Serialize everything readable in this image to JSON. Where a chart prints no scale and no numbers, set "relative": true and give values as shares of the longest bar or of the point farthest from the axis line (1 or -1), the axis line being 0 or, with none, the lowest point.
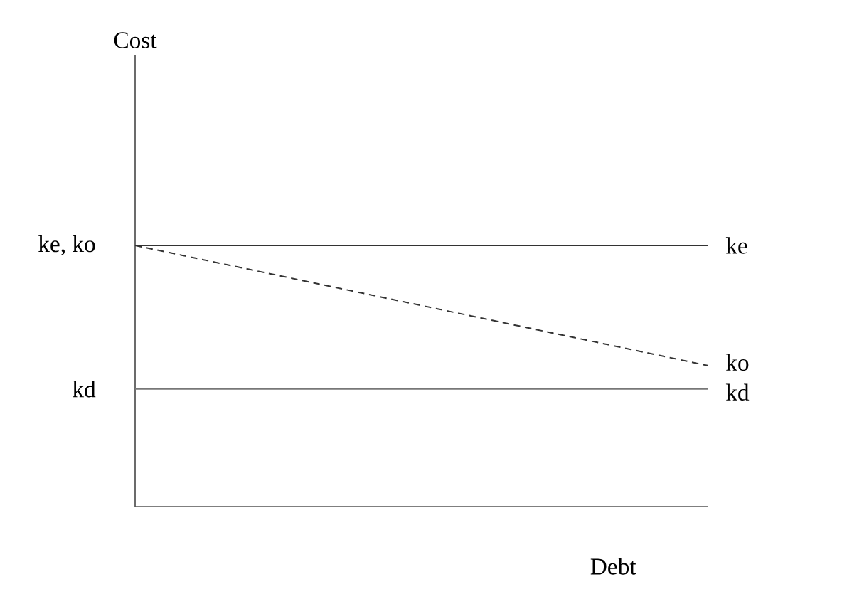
{
  "chart_data": {
    "type": "line",
    "relative": true,
    "xlabel": "Debt",
    "categories": [
      null,
      null
    ],
    "marker": "none",
    "series": [
      {
        "name": "ke",
        "color": "#333333",
        "values": [
          1,
          1
        ],
        "line_style": "solid"
      },
      {
        "name": "ko",
        "color": "#333333",
        "values": [
          1,
          0.54
        ],
        "line_style": "dashed"
      },
      {
        "name": "kd",
        "color": "#777777",
        "values": [
          0.45,
          0.45
        ],
        "line_style": "solid"
      }
    ],
    "annotations": [
      "ke, ko",
      "kd",
      "Cost"
    ]
  }
}
